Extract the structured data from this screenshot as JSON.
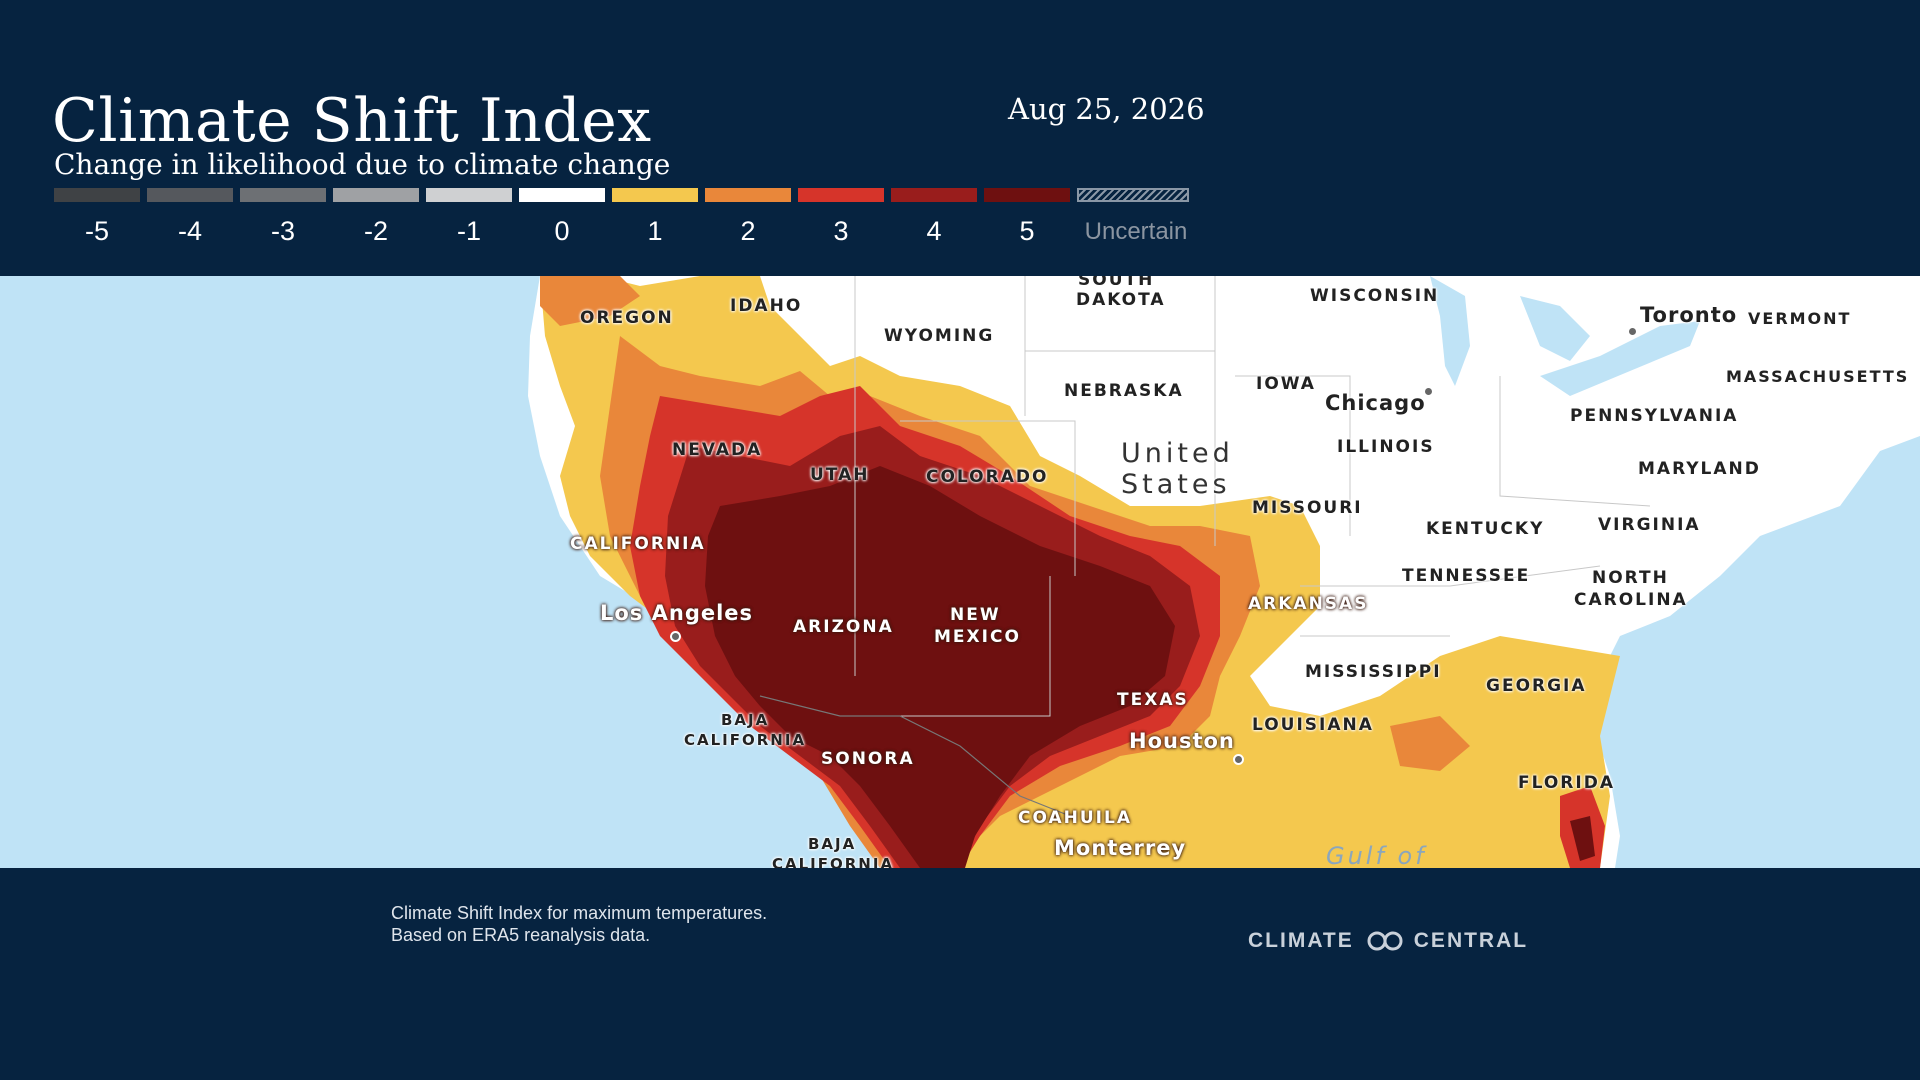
{
  "header": {
    "title": "Climate Shift Index",
    "subtitle": "Change in likelihood due to climate change",
    "date": "Aug 25, 2026"
  },
  "legend": [
    {
      "label": "-5",
      "color": "#3f4245"
    },
    {
      "label": "-4",
      "color": "#55585d"
    },
    {
      "label": "-3",
      "color": "#6d7074"
    },
    {
      "label": "-2",
      "color": "#9fa1a4"
    },
    {
      "label": "-1",
      "color": "#cfd0d2"
    },
    {
      "label": "0",
      "color": "#ffffff"
    },
    {
      "label": "1",
      "color": "#f4c84e"
    },
    {
      "label": "2",
      "color": "#e9873a"
    },
    {
      "label": "3",
      "color": "#d6342a"
    },
    {
      "label": "4",
      "color": "#991d1c"
    },
    {
      "label": "5",
      "color": "#6e1010"
    },
    {
      "label": "Uncertain",
      "color": "#8a97a6"
    }
  ],
  "map": {
    "labels": {
      "oregon": "OREGON",
      "idaho": "IDAHO",
      "wyoming": "WYOMING",
      "south_dakota_1": "SOUTH",
      "south_dakota_2": "DAKOTA",
      "wisconsin": "WISCONSIN",
      "toronto": "Toronto",
      "vermont": "VERMONT",
      "nebraska": "NEBRASKA",
      "iowa": "IOWA",
      "chicago": "Chicago",
      "massachusetts": "MASSACHUSETTS",
      "pennsylvania": "PENNSYLVANIA",
      "nevada": "NEVADA",
      "utah": "UTAH",
      "colorado": "COLORADO",
      "united_states_1": "United",
      "united_states_2": "States",
      "illinois": "ILLINOIS",
      "maryland": "MARYLAND",
      "missouri": "MISSOURI",
      "california": "CALIFORNIA",
      "kentucky": "KENTUCKY",
      "virginia": "VIRGINIA",
      "tennessee": "TENNESSEE",
      "north_carolina_1": "NORTH",
      "north_carolina_2": "CAROLINA",
      "arkansas": "ARKANSAS",
      "los_angeles": "Los Angeles",
      "arizona": "ARIZONA",
      "new_mexico_1": "NEW",
      "new_mexico_2": "MEXICO",
      "mississippi": "MISSISSIPPI",
      "georgia": "GEORGIA",
      "texas": "TEXAS",
      "baja_california_1": "BAJA",
      "baja_california_2": "CALIFORNIA",
      "louisiana": "LOUISIANA",
      "houston": "Houston",
      "sonora": "SONORA",
      "florida": "FLORIDA",
      "coahuila": "COAHUILA",
      "baja_california_sur_1": "BAJA",
      "baja_california_sur_2": "CALIFORNIA",
      "monterrey": "Monterrey",
      "gulf": "Gulf of"
    }
  },
  "footer": {
    "source_line1": "Climate Shift Index for maximum temperatures.",
    "source_line2": "Based on ERA5 reanalysis data.",
    "brand_left": "CLIMATE",
    "brand_right": "CENTRAL"
  }
}
